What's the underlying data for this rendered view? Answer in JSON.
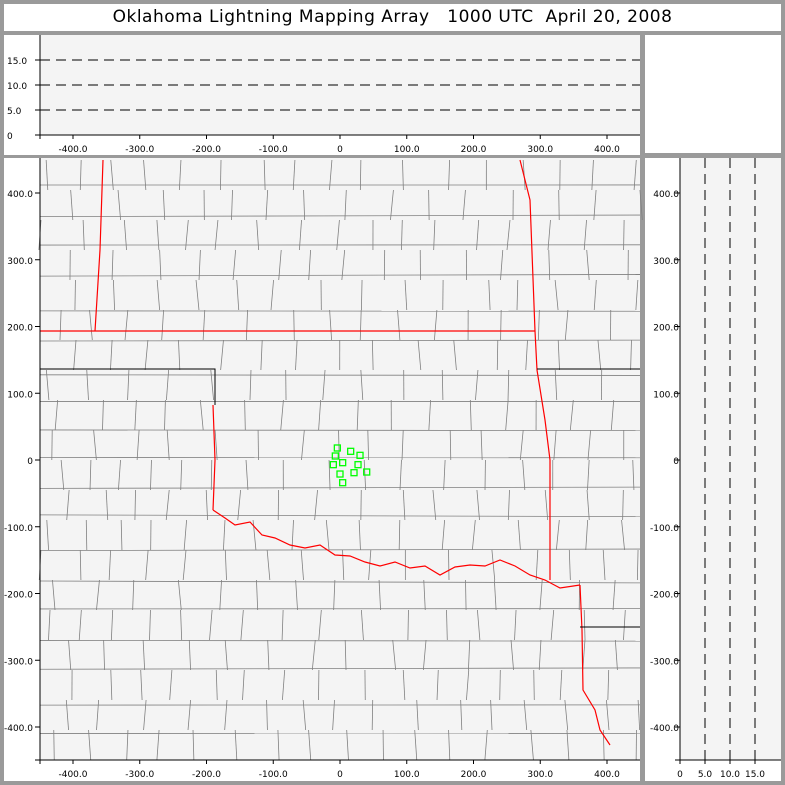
{
  "title": "Oklahoma Lightning Mapping Array   1000 UTC  April 20, 2008",
  "colors": {
    "background": "#9a9a9a",
    "plot": "#f4f4f4",
    "state_border": "#ff0000",
    "county_border": "#808080",
    "points": "#00ff00"
  },
  "chart_data": [
    {
      "panel": "altitude-vs-x",
      "type": "line",
      "x_ticks": [
        "-400.0",
        "-300.0",
        "-200.0",
        "-100.0",
        "0",
        "100.0",
        "200.0",
        "300.0",
        "400.0"
      ],
      "y_ticks": [
        "0",
        "5.0",
        "10.0",
        "15.0"
      ],
      "xlim": [
        -450,
        450
      ],
      "ylim": [
        0,
        20
      ],
      "reference_lines_y": [
        5,
        10,
        15
      ],
      "reference_line_style": "dashed",
      "points": []
    },
    {
      "panel": "plan-view-map",
      "type": "scatter",
      "x_ticks": [
        "-400.0",
        "-300.0",
        "-200.0",
        "-100.0",
        "0",
        "100.0",
        "200.0",
        "300.0",
        "400.0"
      ],
      "y_ticks": [
        "400.0",
        "300.0",
        "200.0",
        "100.0",
        "0",
        "-100.0",
        "-200.0",
        "-300.0",
        "-400.0"
      ],
      "xlim": [
        -450,
        450
      ],
      "ylim": [
        -450,
        450
      ],
      "marker": "square-outline",
      "points": [
        {
          "x": -4,
          "y": 18
        },
        {
          "x": -7,
          "y": 6
        },
        {
          "x": -10,
          "y": -7
        },
        {
          "x": 4,
          "y": -4
        },
        {
          "x": 16,
          "y": 13
        },
        {
          "x": 30,
          "y": 7
        },
        {
          "x": 27,
          "y": -7
        },
        {
          "x": 0,
          "y": -21
        },
        {
          "x": 21,
          "y": -19
        },
        {
          "x": 40,
          "y": -18
        },
        {
          "x": 4,
          "y": -34
        }
      ]
    },
    {
      "panel": "y-vs-altitude",
      "type": "line",
      "x_ticks": [
        "0",
        "5.0",
        "10.0",
        "15.0"
      ],
      "y_ticks": [
        "400.0",
        "300.0",
        "200.0",
        "100.0",
        "0",
        "-100.0",
        "-200.0",
        "-300.0",
        "-400.0"
      ],
      "xlim": [
        0,
        20
      ],
      "ylim": [
        -450,
        450
      ],
      "reference_lines_x": [
        5,
        10,
        15
      ],
      "reference_line_style": "dashed",
      "points": []
    }
  ]
}
